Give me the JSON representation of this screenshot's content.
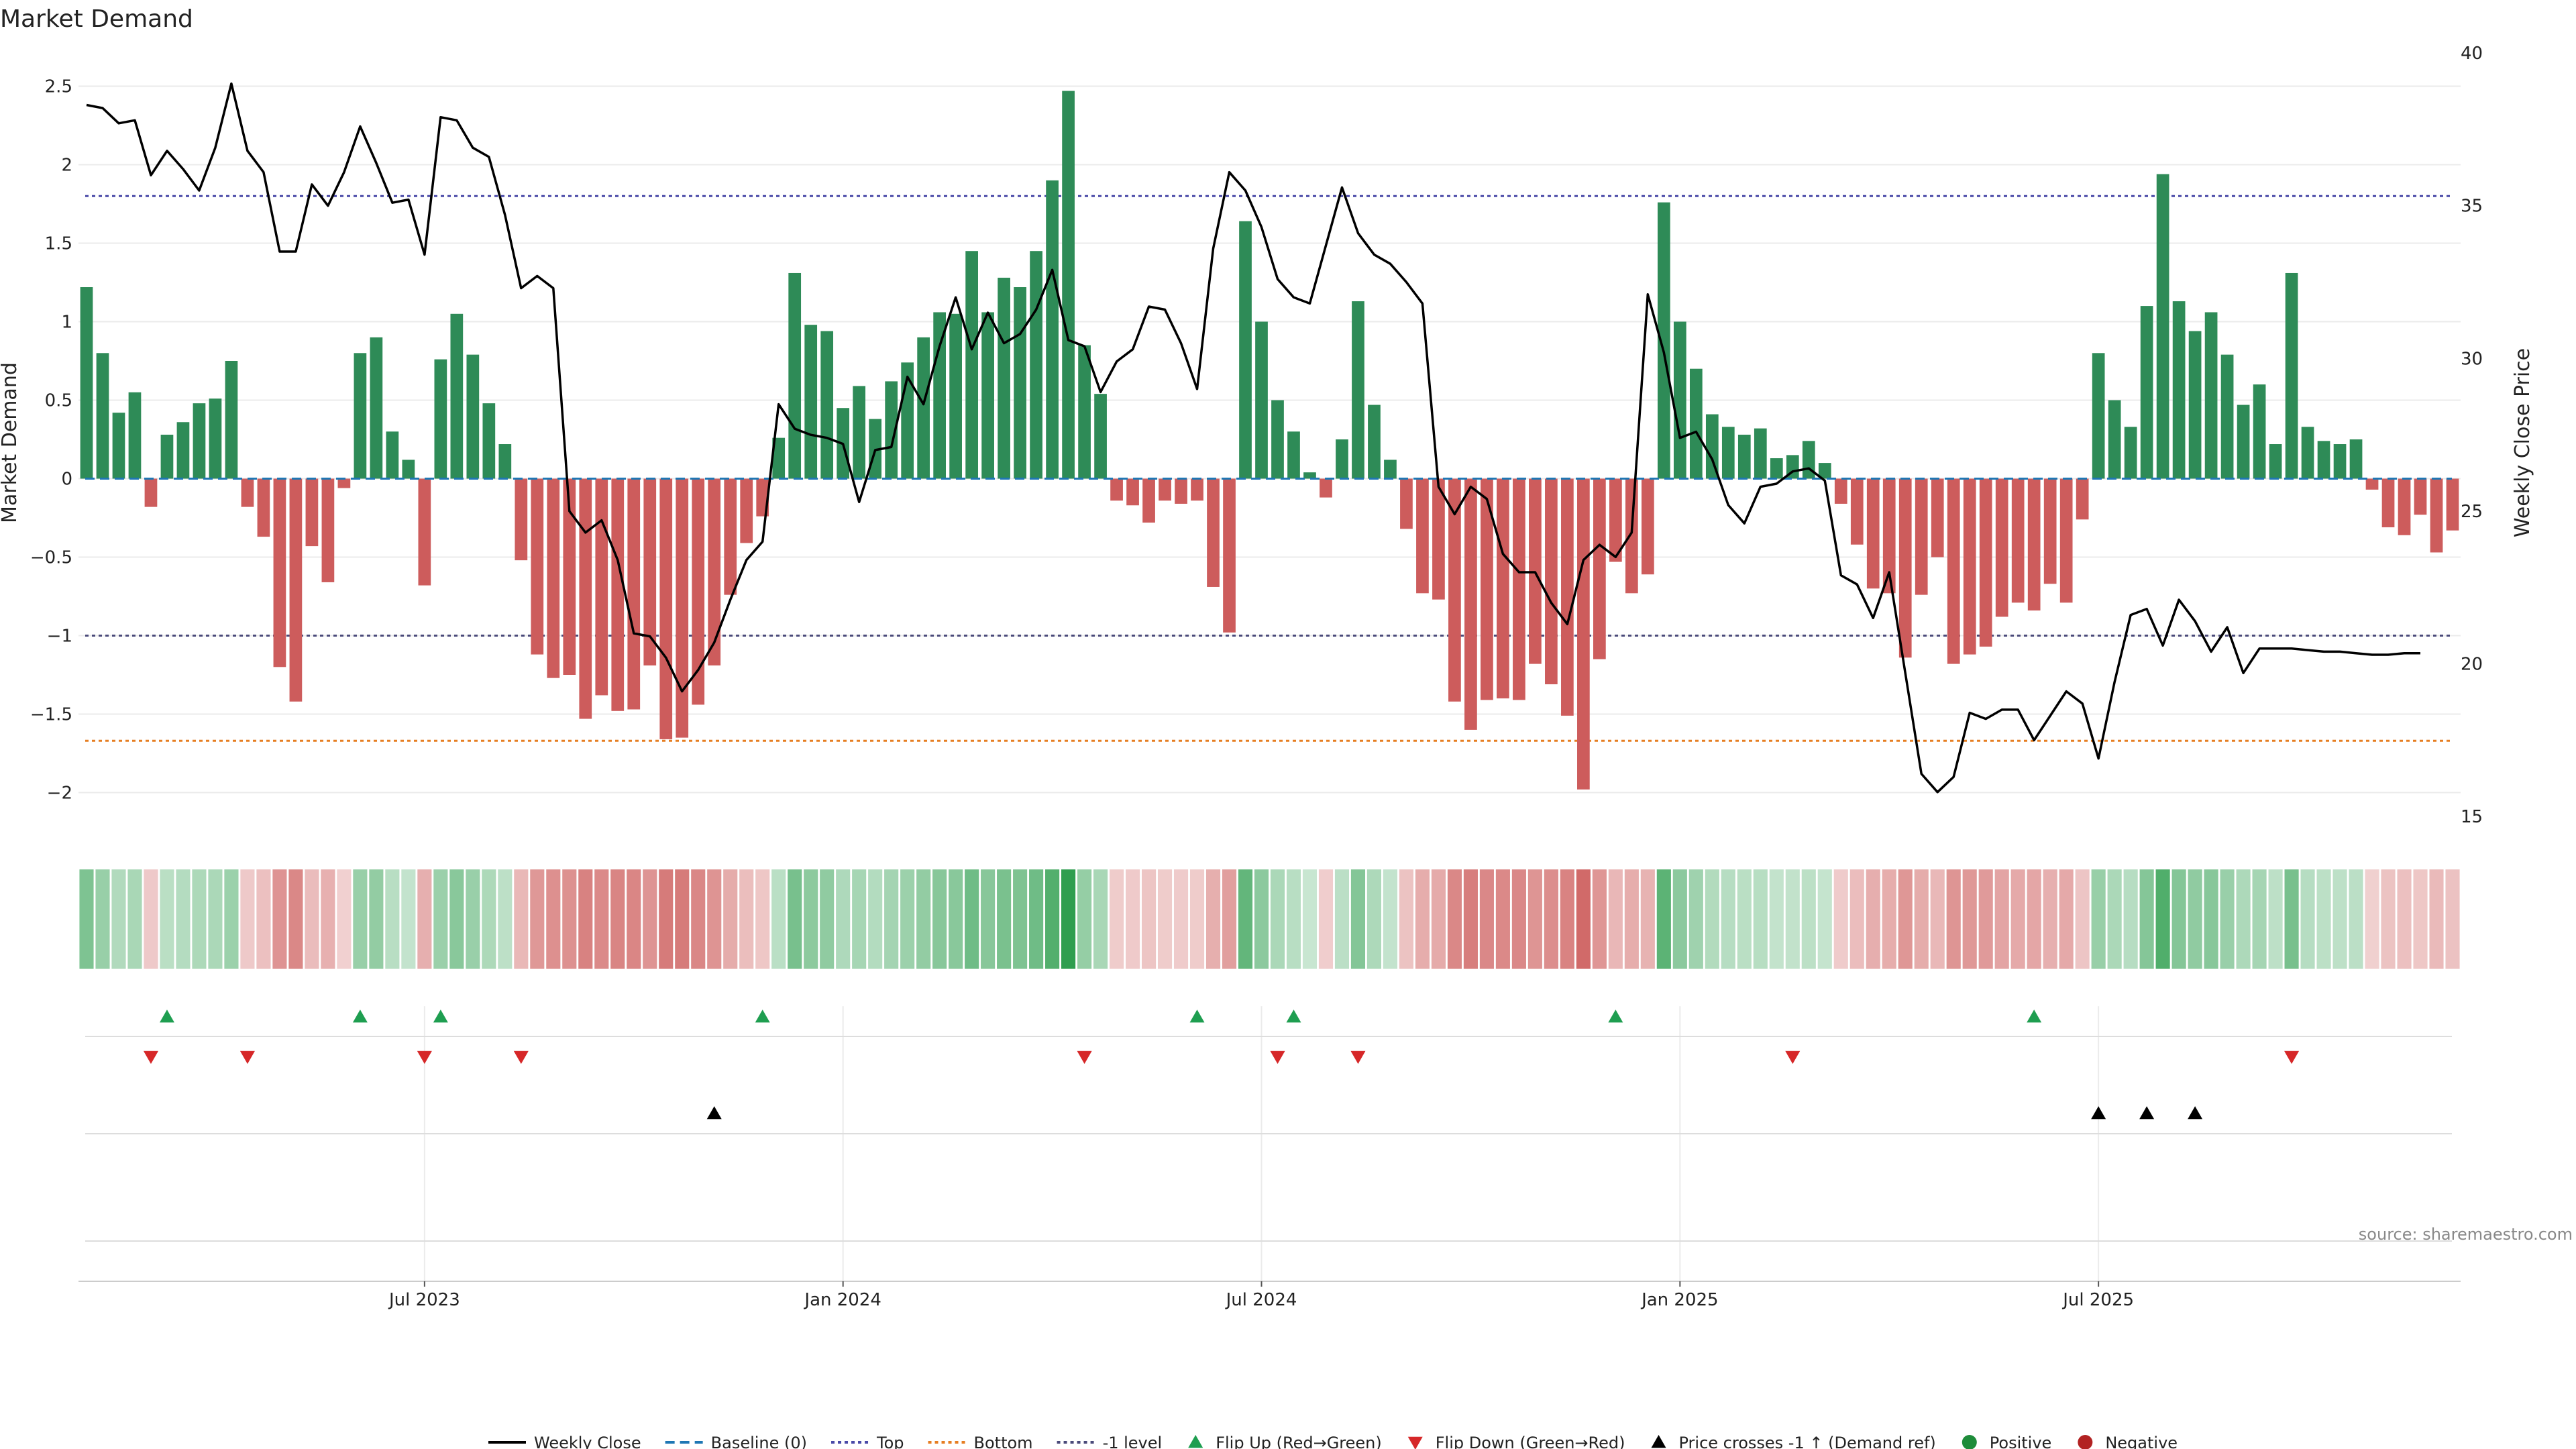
{
  "chart_data": {
    "type": "bar",
    "title": "Market Demand",
    "ylabel": "Market Demand",
    "y2label": "Weekly Close Price",
    "ylim": [
      -2.25,
      2.75
    ],
    "y2lim": [
      14.5,
      40.2
    ],
    "yticks": [
      -2,
      -1.5,
      -1,
      -0.5,
      0,
      0.5,
      1,
      1.5,
      2,
      2.5
    ],
    "ytick_labels": [
      "−2",
      "−1.5",
      "−1",
      "−0.5",
      "0",
      "0.5",
      "1",
      "1.5",
      "2",
      "2.5"
    ],
    "y2ticks": [
      15,
      20,
      25,
      30,
      35,
      40
    ],
    "y2tick_labels": [
      "15",
      "20",
      "25",
      "30",
      "35",
      "40"
    ],
    "xticks": [
      {
        "index": 21,
        "label": "Jul 2023"
      },
      {
        "index": 47,
        "label": "Jan 2024"
      },
      {
        "index": 73,
        "label": "Jul 2024"
      },
      {
        "index": 99,
        "label": "Jan 2025"
      },
      {
        "index": 125,
        "label": "Jul 2025"
      }
    ],
    "reference_lines": {
      "top": 1.8,
      "minus_one": -1,
      "bottom": -1.67,
      "baseline": 0
    },
    "demand": [
      1.22,
      0.8,
      0.42,
      0.55,
      -0.18,
      0.28,
      0.36,
      0.48,
      0.51,
      0.75,
      -0.18,
      -0.37,
      -1.2,
      -1.42,
      -0.43,
      -0.66,
      -0.06,
      0.8,
      0.9,
      0.3,
      0.12,
      -0.68,
      0.76,
      1.05,
      0.79,
      0.48,
      0.22,
      -0.52,
      -1.12,
      -1.27,
      -1.25,
      -1.53,
      -1.38,
      -1.48,
      -1.47,
      -1.19,
      -1.66,
      -1.65,
      -1.44,
      -1.19,
      -0.74,
      -0.41,
      -0.24,
      0.26,
      1.31,
      0.98,
      0.94,
      0.45,
      0.59,
      0.38,
      0.62,
      0.74,
      0.9,
      1.06,
      1.05,
      1.45,
      1.06,
      1.28,
      1.22,
      1.45,
      1.9,
      2.47,
      0.85,
      0.54,
      -0.14,
      -0.17,
      -0.28,
      -0.14,
      -0.16,
      -0.14,
      -0.69,
      -0.98,
      1.64,
      1.0,
      0.5,
      0.3,
      0.04,
      -0.12,
      0.25,
      1.13,
      0.47,
      0.12,
      -0.32,
      -0.73,
      -0.77,
      -1.42,
      -1.6,
      -1.41,
      -1.4,
      -1.41,
      -1.18,
      -1.31,
      -1.51,
      -1.98,
      -1.15,
      -0.53,
      -0.73,
      -0.61,
      1.76,
      1.0,
      0.7,
      0.41,
      0.33,
      0.28,
      0.32,
      0.13,
      0.15,
      0.24,
      0.1,
      -0.16,
      -0.42,
      -0.7,
      -0.73,
      -1.14,
      -0.74,
      -0.5,
      -1.18,
      -1.12,
      -1.07,
      -0.88,
      -0.79,
      -0.84,
      -0.67,
      -0.79,
      -0.26,
      0.8,
      0.5,
      0.33,
      1.1,
      1.94,
      1.13,
      0.94,
      1.06,
      0.79,
      0.47,
      0.6,
      0.22,
      1.31,
      0.33,
      0.24,
      0.22,
      0.25,
      -0.07,
      -0.31,
      -0.36,
      -0.23,
      -0.47,
      -0.33
    ],
    "price": [
      38.3,
      38.2,
      37.7,
      37.8,
      36.0,
      36.8,
      36.2,
      35.5,
      36.9,
      39.0,
      36.8,
      36.1,
      33.5,
      33.5,
      35.7,
      35.0,
      36.1,
      37.6,
      36.4,
      35.1,
      35.2,
      33.4,
      37.9,
      37.8,
      36.9,
      36.6,
      34.7,
      32.3,
      32.7,
      32.3,
      25.0,
      24.3,
      24.7,
      23.4,
      21.0,
      20.9,
      20.2,
      19.1,
      19.8,
      20.7,
      22.1,
      23.4,
      24.0,
      28.5,
      27.7,
      27.5,
      27.4,
      27.2,
      25.3,
      27.0,
      27.1,
      29.4,
      28.5,
      30.4,
      32.0,
      30.3,
      31.5,
      30.5,
      30.8,
      31.6,
      32.9,
      30.6,
      30.4,
      28.9,
      29.9,
      30.3,
      31.7,
      31.6,
      30.5,
      29.0,
      33.6,
      36.1,
      35.5,
      34.3,
      32.6,
      32.0,
      31.8,
      33.7,
      35.6,
      34.1,
      33.4,
      33.1,
      32.5,
      31.8,
      25.8,
      24.9,
      25.8,
      25.4,
      23.6,
      23.0,
      23.0,
      22.0,
      21.3,
      23.4,
      23.9,
      23.5,
      24.3,
      32.1,
      30.2,
      27.4,
      27.6,
      26.7,
      25.2,
      24.6,
      25.8,
      25.9,
      26.3,
      26.4,
      26.0,
      22.9,
      22.6,
      21.5,
      23.0,
      19.7,
      16.4,
      15.8,
      16.3,
      18.4,
      18.2,
      18.5,
      18.5,
      17.5,
      18.3,
      19.1,
      18.7,
      16.9,
      19.4,
      21.6,
      21.8,
      20.6,
      22.1,
      21.4,
      20.4,
      21.2,
      19.7,
      20.5,
      20.5,
      20.5,
      20.45,
      20.4,
      20.4,
      20.35,
      20.3,
      20.3,
      20.35,
      20.35
    ],
    "flip_up": [
      5,
      17,
      22,
      42,
      69,
      75,
      95,
      121
    ],
    "flip_down": [
      4,
      10,
      21,
      27,
      62,
      74,
      79,
      106,
      137
    ],
    "price_cross_up": [
      39,
      125,
      128,
      131
    ],
    "legend": [
      {
        "label": "Weekly Close",
        "marker": "solid-line",
        "color": "#000000"
      },
      {
        "label": "Baseline (0)",
        "marker": "dashed-line",
        "color": "#1f77b4"
      },
      {
        "label": "Top",
        "marker": "dotted-line",
        "color": "#4a4aa8"
      },
      {
        "label": "Bottom",
        "marker": "dotted-line",
        "color": "#e67e22"
      },
      {
        "label": "-1 level",
        "marker": "dotted-line",
        "color": "#4a4a7a"
      },
      {
        "label": "Flip Up (Red→Green)",
        "marker": "triangle-up",
        "color": "#1e9e50"
      },
      {
        "label": "Flip Down (Green→Red)",
        "marker": "triangle-down",
        "color": "#d62728"
      },
      {
        "label": "Price crosses -1 ↑ (Demand ref)",
        "marker": "triangle-up",
        "color": "#000000"
      },
      {
        "label": "Positive",
        "marker": "circle",
        "color": "#1e8c3a"
      },
      {
        "label": "Negative",
        "marker": "circle",
        "color": "#b22222"
      }
    ],
    "source": "source: sharemaestro.com"
  },
  "colors": {
    "positive_bar": "#2e8b57",
    "negative_bar": "#cd5c5c",
    "price_line": "#000000",
    "grid": "#ebebeb",
    "heat_positive": "#2f9e4f",
    "heat_negative": "#c9504f"
  }
}
